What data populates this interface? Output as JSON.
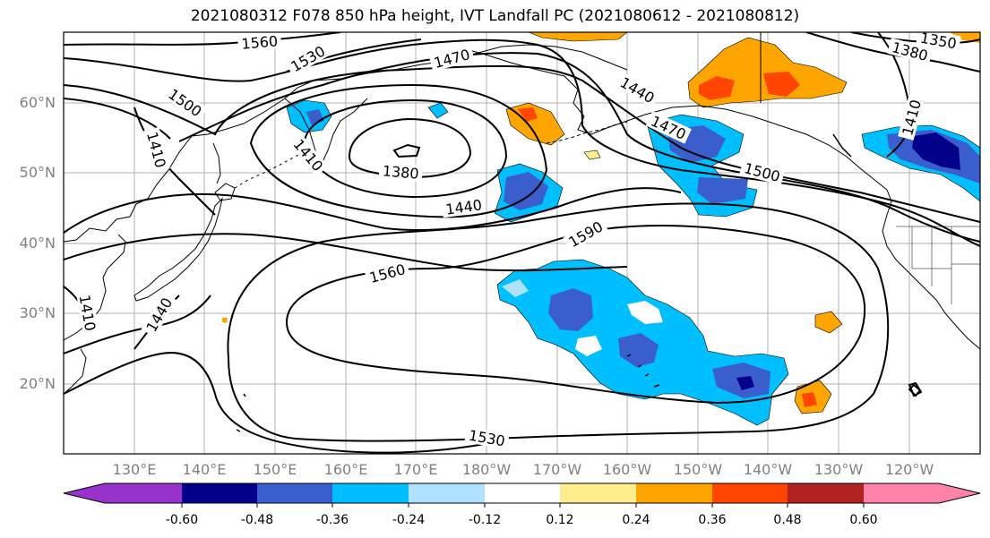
{
  "title": "2021080312 F078 850 hPa height, IVT Landfall PC (2021080612 - 2021080812)",
  "lat_labels": [
    "60°N",
    "50°N",
    "40°N",
    "30°N",
    "20°N"
  ],
  "lon_labels": [
    "130°E",
    "140°E",
    "150°E",
    "160°E",
    "170°E",
    "180°W",
    "170°W",
    "160°W",
    "150°W",
    "140°W",
    "130°W",
    "120°W"
  ],
  "contour_labels": [
    "1560",
    "1530",
    "1470",
    "1500",
    "1410",
    "1380",
    "1410",
    "1440",
    "1440",
    "1470",
    "1500",
    "1590",
    "1560",
    "1410",
    "1440",
    "1530",
    "1380",
    "1410",
    "1350"
  ],
  "colorbar": {
    "tick_labels": [
      "-0.60",
      "-0.48",
      "-0.36",
      "-0.24",
      "-0.12",
      "0.12",
      "0.24",
      "0.36",
      "0.48",
      "0.60"
    ],
    "colors": [
      "#9932cc",
      "#00008b",
      "#3a5fcd",
      "#00bfff",
      "#b0e2ff",
      "#ffffff",
      "#ffec8b",
      "#ffa500",
      "#ff4500",
      "#b22222",
      "#ff82ab"
    ]
  }
}
